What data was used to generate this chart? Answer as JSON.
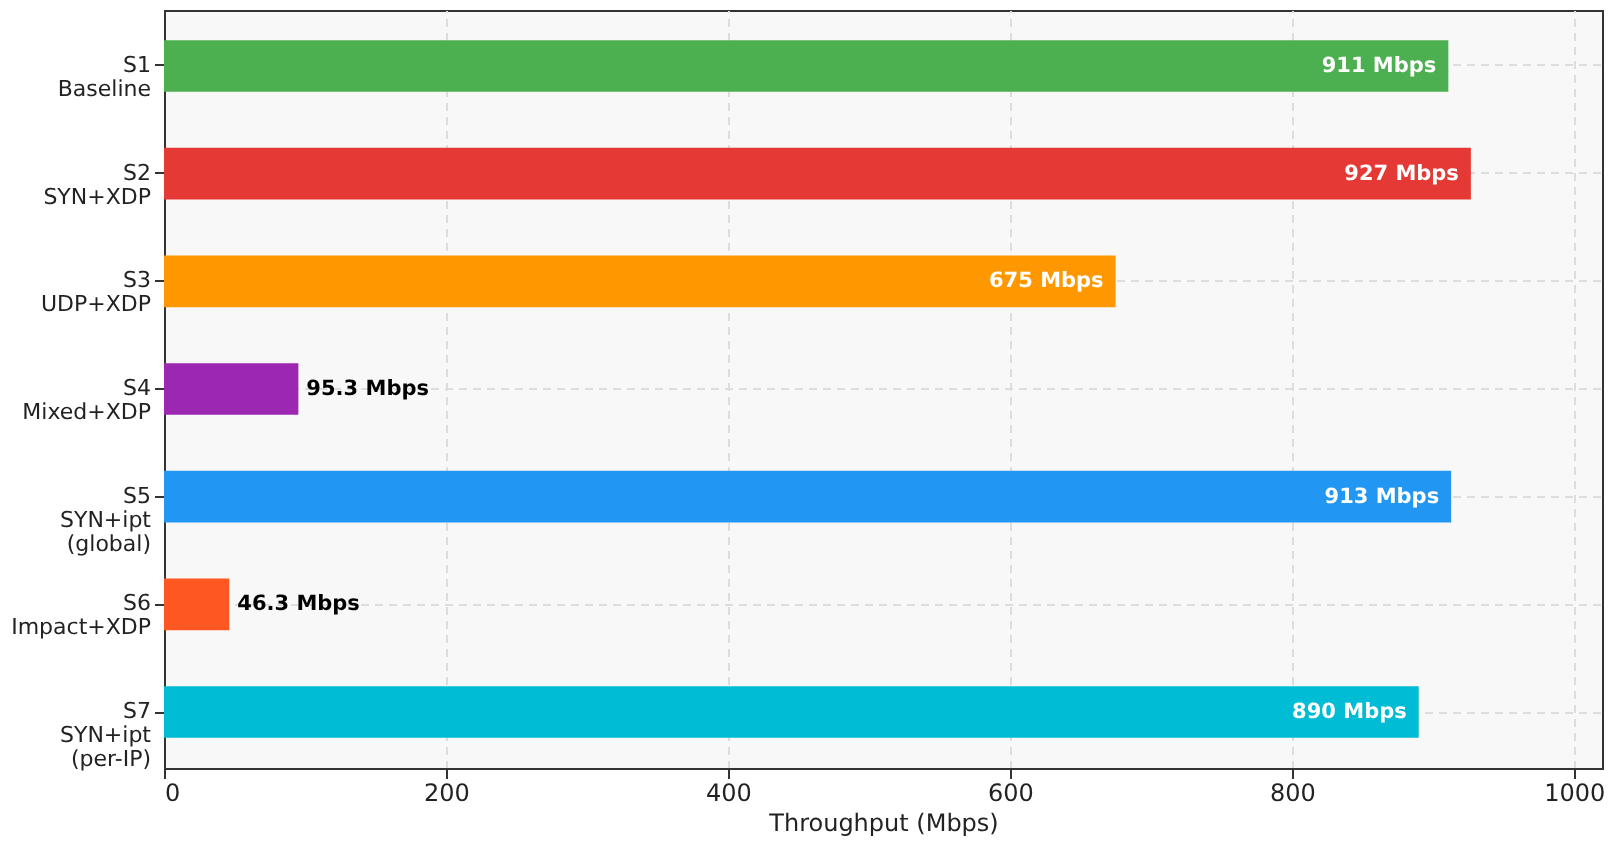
{
  "chart_data": {
    "type": "bar",
    "orientation": "horizontal",
    "xlabel": "Throughput (Mbps)",
    "categories": [
      "S1\nBaseline",
      "S2\nSYN+XDP",
      "S3\nUDP+XDP",
      "S4\nMixed+XDP",
      "S5\nSYN+ipt\n(global)",
      "S6\nImpact+XDP",
      "S7\nSYN+ipt\n(per-IP)"
    ],
    "values": [
      911,
      927,
      675,
      95.3,
      913,
      46.3,
      890
    ],
    "colors": [
      "#4caf50",
      "#e53935",
      "#ff9800",
      "#9c27b0",
      "#2196f3",
      "#ff5722",
      "#00bcd4"
    ],
    "value_labels": [
      "911 Mbps",
      "927 Mbps",
      "675 Mbps",
      "95.3 Mbps",
      "913 Mbps",
      "46.3 Mbps",
      "890 Mbps"
    ],
    "xlim": [
      0,
      1020
    ],
    "xticks": [
      0,
      200,
      400,
      600,
      800,
      1000
    ],
    "grid": true
  }
}
